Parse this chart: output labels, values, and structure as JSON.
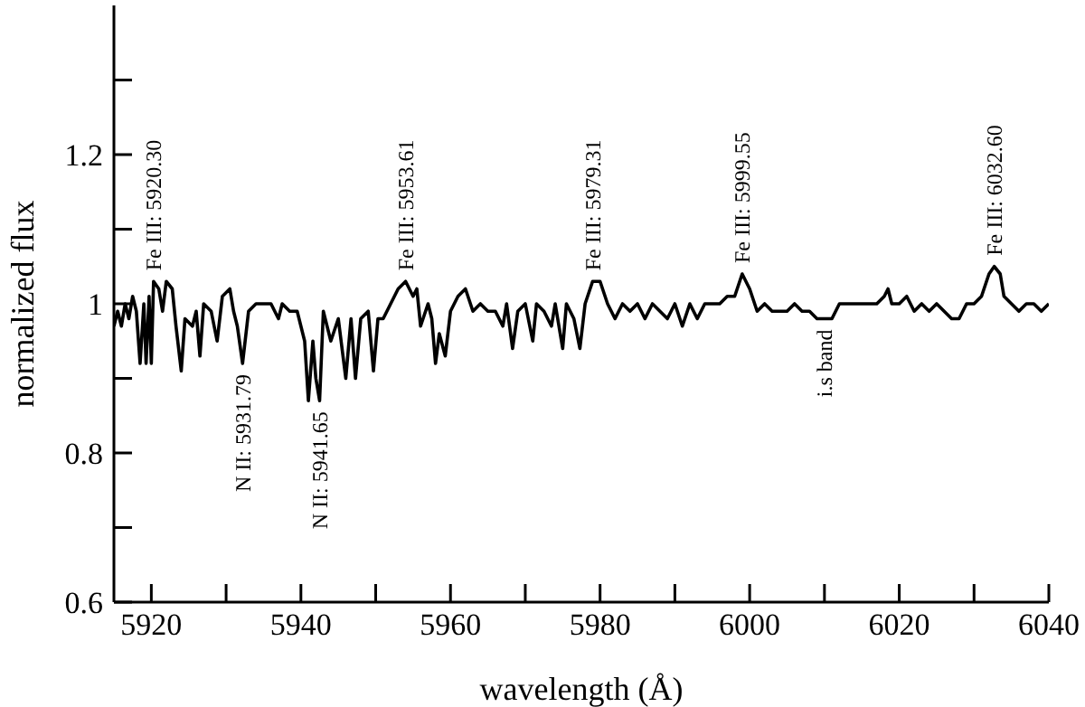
{
  "chart_data": {
    "type": "line",
    "xlabel": "wavelength (Å)",
    "ylabel": "normalized flux",
    "x": [
      5915,
      5915.5,
      5916,
      5916.5,
      5917,
      5917.5,
      5918,
      5918.5,
      5919,
      5919.3,
      5919.7,
      5920,
      5920.3,
      5921,
      5921.5,
      5922,
      5922.8,
      5923.3,
      5924,
      5924.5,
      5925.5,
      5926,
      5926.5,
      5927,
      5928,
      5928.8,
      5929.5,
      5930.5,
      5931,
      5931.5,
      5932.2,
      5933,
      5934,
      5935,
      5936,
      5937,
      5937.5,
      5938.5,
      5939.5,
      5940.5,
      5941,
      5941.6,
      5942,
      5942.5,
      5943,
      5944,
      5945,
      5946,
      5946.7,
      5947.3,
      5948,
      5949,
      5949.7,
      5950.3,
      5951,
      5952,
      5953,
      5954,
      5955,
      5955.5,
      5956,
      5957,
      5957.5,
      5958,
      5958.5,
      5959.3,
      5960,
      5961,
      5962,
      5963,
      5964,
      5965,
      5966,
      5967,
      5967.5,
      5968.3,
      5969,
      5970,
      5971,
      5971.5,
      5972.5,
      5973.5,
      5974,
      5975,
      5975.5,
      5976.5,
      5977.3,
      5978,
      5979,
      5980,
      5981,
      5982,
      5983,
      5984,
      5985,
      5986,
      5987,
      5988,
      5989,
      5990,
      5991,
      5992,
      5993,
      5994,
      5995,
      5996,
      5997,
      5998,
      5999,
      6000,
      6001,
      6002,
      6003,
      6004,
      6005,
      6006,
      6007,
      6008,
      6009,
      6010,
      6011,
      6012,
      6013,
      6014,
      6015,
      6016,
      6017,
      6018,
      6018.5,
      6019,
      6020,
      6021,
      6022,
      6023,
      6024,
      6025,
      6026,
      6027,
      6028,
      6029,
      6030,
      6031,
      6032,
      6032.7,
      6033.5,
      6034,
      6035,
      6036,
      6037,
      6038,
      6039,
      6040
    ],
    "series": [
      {
        "color": "#000000",
        "values": [
          0.97,
          0.99,
          0.97,
          1.0,
          0.98,
          1.01,
          0.99,
          0.92,
          1.0,
          0.92,
          1.01,
          0.92,
          1.03,
          1.02,
          0.99,
          1.03,
          1.02,
          0.97,
          0.91,
          0.98,
          0.97,
          0.99,
          0.93,
          1.0,
          0.99,
          0.95,
          1.01,
          1.02,
          0.99,
          0.97,
          0.92,
          0.99,
          1.0,
          1.0,
          1.0,
          0.98,
          1.0,
          0.99,
          0.99,
          0.95,
          0.87,
          0.95,
          0.9,
          0.87,
          0.99,
          0.95,
          0.98,
          0.9,
          0.98,
          0.9,
          0.98,
          0.99,
          0.91,
          0.98,
          0.98,
          1.0,
          1.02,
          1.03,
          1.01,
          1.02,
          0.97,
          1.0,
          0.98,
          0.92,
          0.96,
          0.93,
          0.99,
          1.01,
          1.02,
          0.99,
          1.0,
          0.99,
          0.99,
          0.97,
          1.0,
          0.94,
          0.99,
          1.0,
          0.95,
          1.0,
          0.99,
          0.97,
          1.0,
          0.94,
          1.0,
          0.98,
          0.94,
          1.0,
          1.03,
          1.03,
          1.0,
          0.98,
          1.0,
          0.99,
          1.0,
          0.98,
          1.0,
          0.99,
          0.98,
          1.0,
          0.97,
          1.0,
          0.98,
          1.0,
          1.0,
          1.0,
          1.01,
          1.01,
          1.04,
          1.02,
          0.99,
          1.0,
          0.99,
          0.99,
          0.99,
          1.0,
          0.99,
          0.99,
          0.98,
          0.98,
          0.98,
          1.0,
          1.0,
          1.0,
          1.0,
          1.0,
          1.0,
          1.01,
          1.02,
          1.0,
          1.0,
          1.01,
          0.99,
          1.0,
          0.99,
          1.0,
          0.99,
          0.98,
          0.98,
          1.0,
          1.0,
          1.01,
          1.04,
          1.05,
          1.04,
          1.01,
          1.0,
          0.99,
          1.0,
          1.0,
          0.99,
          1.0
        ]
      }
    ],
    "xlim": [
      5915,
      6040
    ],
    "xticks": [
      5920,
      {
        "value": 5930,
        "label": null
      },
      5940,
      {
        "value": 5950,
        "label": null
      },
      5960,
      {
        "value": 5970,
        "label": null
      },
      5980,
      {
        "value": 5990,
        "label": null
      },
      6000,
      {
        "value": 6010,
        "label": null
      },
      6020,
      {
        "value": 6030,
        "label": null
      },
      6040
    ],
    "ylim": [
      0.6,
      1.4
    ],
    "yticks": [
      0.6,
      {
        "value": 0.7,
        "label": null
      },
      0.8,
      {
        "value": 0.9,
        "label": null
      },
      1,
      {
        "value": 1.1,
        "label": null
      },
      1.2,
      {
        "value": 1.3,
        "label": null
      }
    ],
    "grid": false,
    "legend": false,
    "marker": "none",
    "line_style": "solid",
    "annotations": [
      {
        "text": "Fe III: 5920.30",
        "x": 5920.3,
        "y": 1.03
      },
      {
        "text": "N II: 5931.79",
        "x": 5932.2,
        "y": 0.92
      },
      {
        "text": "N II: 5941.65",
        "x": 5942.5,
        "y": 0.87
      },
      {
        "text": "Fe III: 5953.61",
        "x": 5954,
        "y": 1.03
      },
      {
        "text": "Fe III: 5979.31",
        "x": 5979,
        "y": 1.03
      },
      {
        "text": "Fe III: 5999.55",
        "x": 5999,
        "y": 1.04
      },
      {
        "text": "i.s band",
        "x": 6010,
        "y": 0.98
      },
      {
        "text": "Fe III: 6032.60",
        "x": 6032.7,
        "y": 1.05
      }
    ]
  }
}
